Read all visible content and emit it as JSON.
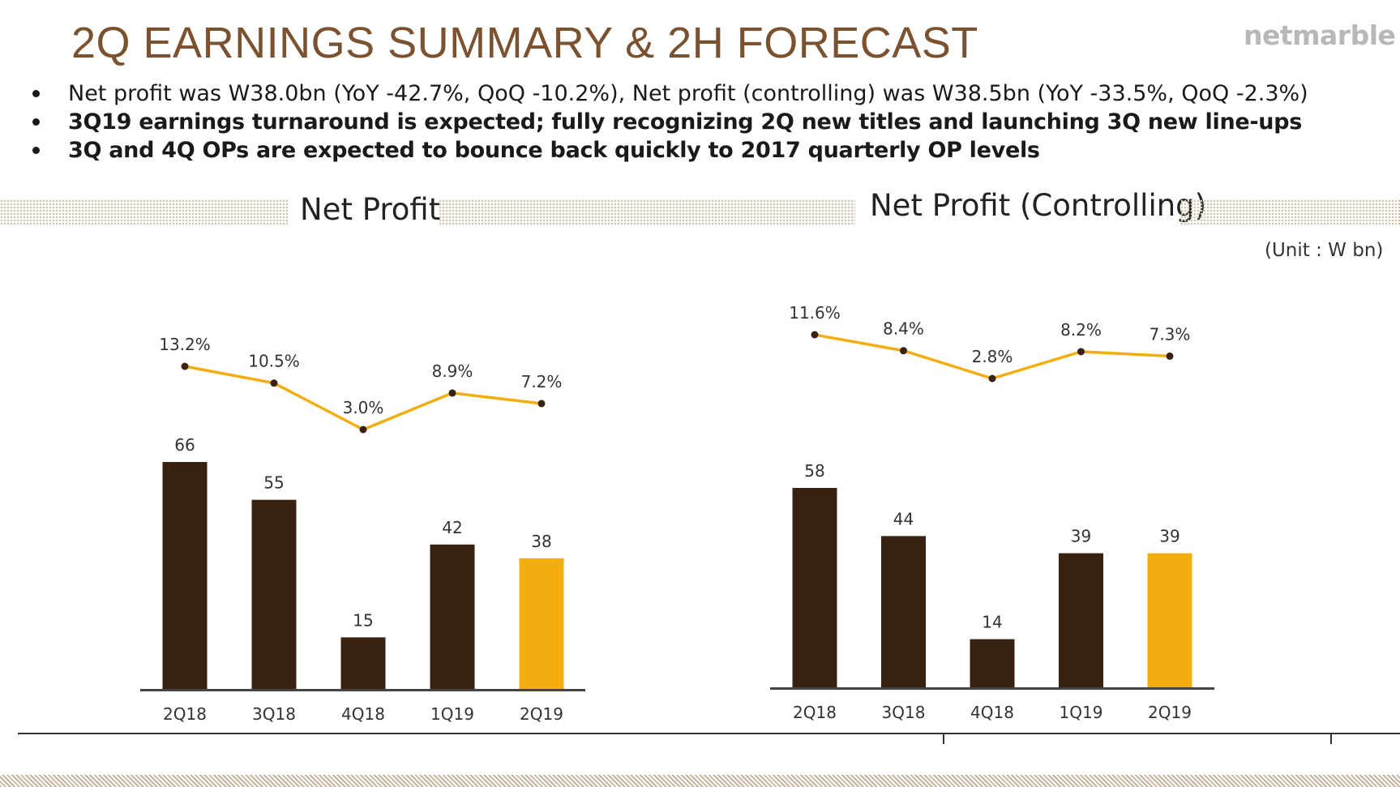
{
  "header": {
    "title": "2Q EARNINGS SUMMARY & 2H FORECAST",
    "logo_text": "netmarble"
  },
  "bullets": [
    "Net profit was W38.0bn (YoY -42.7%, QoQ -10.2%), Net profit (controlling) was W38.5bn (YoY -33.5%, QoQ -2.3%)",
    "3Q19 earnings turnaround is expected; fully recognizing 2Q new titles and launching 3Q new line-ups",
    "3Q and 4Q OPs are expected to bounce back quickly to 2017 quarterly OP levels"
  ],
  "unit_label": "(Unit : W bn)",
  "colors": {
    "title": "#7a5230",
    "bar_dark": "#3a2213",
    "bar_highlight": "#f2ae0e",
    "line": "#f2ae0e",
    "marker": "#3a2213"
  },
  "chart_data": [
    {
      "type": "bar",
      "title": "Net Profit",
      "categories": [
        "2Q18",
        "3Q18",
        "4Q18",
        "1Q19",
        "2Q19"
      ],
      "values": [
        66,
        55,
        15,
        42,
        38
      ],
      "value_labels": [
        "66",
        "55",
        "15",
        "42",
        "38"
      ],
      "highlight_index": 4,
      "ylim": [
        0,
        66
      ],
      "margin_line": {
        "type": "line",
        "values": [
          13.2,
          10.5,
          3.0,
          8.9,
          7.2
        ],
        "labels": [
          "13.2%",
          "10.5%",
          "3.0%",
          "8.9%",
          "7.2%"
        ]
      }
    },
    {
      "type": "bar",
      "title": "Net Profit (Controlling)",
      "categories": [
        "2Q18",
        "3Q18",
        "4Q18",
        "1Q19",
        "2Q19"
      ],
      "values": [
        58,
        44,
        14,
        39,
        39
      ],
      "value_labels": [
        "58",
        "44",
        "14",
        "39",
        "39"
      ],
      "highlight_index": 4,
      "ylim": [
        0,
        58
      ],
      "margin_line": {
        "type": "line",
        "values": [
          11.6,
          8.4,
          2.8,
          8.2,
          7.3
        ],
        "labels": [
          "11.6%",
          "8.4%",
          "2.8%",
          "8.2%",
          "7.3%"
        ]
      }
    }
  ]
}
